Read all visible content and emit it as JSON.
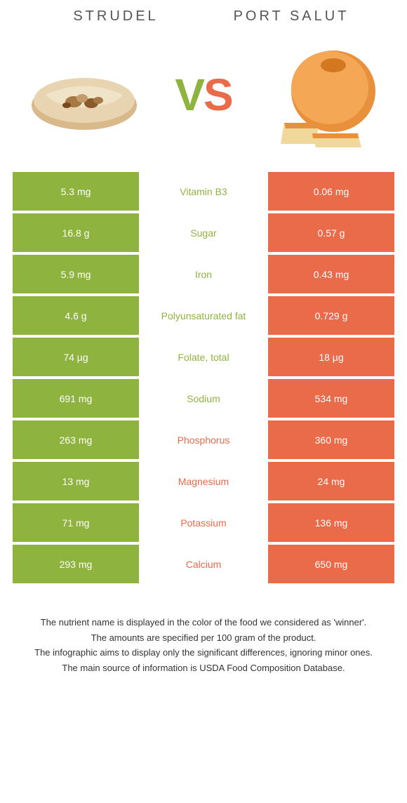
{
  "colors": {
    "green": "#8fb33f",
    "orange": "#e96b4a",
    "text": "#333333",
    "white": "#ffffff"
  },
  "header": {
    "left_title": "STRUDEL",
    "right_title": "PORT SALUT",
    "vs_v": "V",
    "vs_s": "S"
  },
  "rows": [
    {
      "left": "5.3 mg",
      "label": "Vitamin B3",
      "right": "0.06 mg",
      "winner": "left"
    },
    {
      "left": "16.8 g",
      "label": "Sugar",
      "right": "0.57 g",
      "winner": "left"
    },
    {
      "left": "5.9 mg",
      "label": "Iron",
      "right": "0.43 mg",
      "winner": "left"
    },
    {
      "left": "4.6 g",
      "label": "Polyunsaturated fat",
      "right": "0.729 g",
      "winner": "left"
    },
    {
      "left": "74 µg",
      "label": "Folate, total",
      "right": "18 µg",
      "winner": "left"
    },
    {
      "left": "691 mg",
      "label": "Sodium",
      "right": "534 mg",
      "winner": "left"
    },
    {
      "left": "263 mg",
      "label": "Phosphorus",
      "right": "360 mg",
      "winner": "right"
    },
    {
      "left": "13 mg",
      "label": "Magnesium",
      "right": "24 mg",
      "winner": "right"
    },
    {
      "left": "71 mg",
      "label": "Potassium",
      "right": "136 mg",
      "winner": "right"
    },
    {
      "left": "293 mg",
      "label": "Calcium",
      "right": "650 mg",
      "winner": "right"
    }
  ],
  "footer": {
    "line1": "The nutrient name is displayed in the color of the food we considered as 'winner'.",
    "line2": "The amounts are specified per 100 gram of the product.",
    "line3": "The infographic aims to display only the significant differences, ignoring minor ones.",
    "line4": "The main source of information is USDA Food Composition Database."
  }
}
